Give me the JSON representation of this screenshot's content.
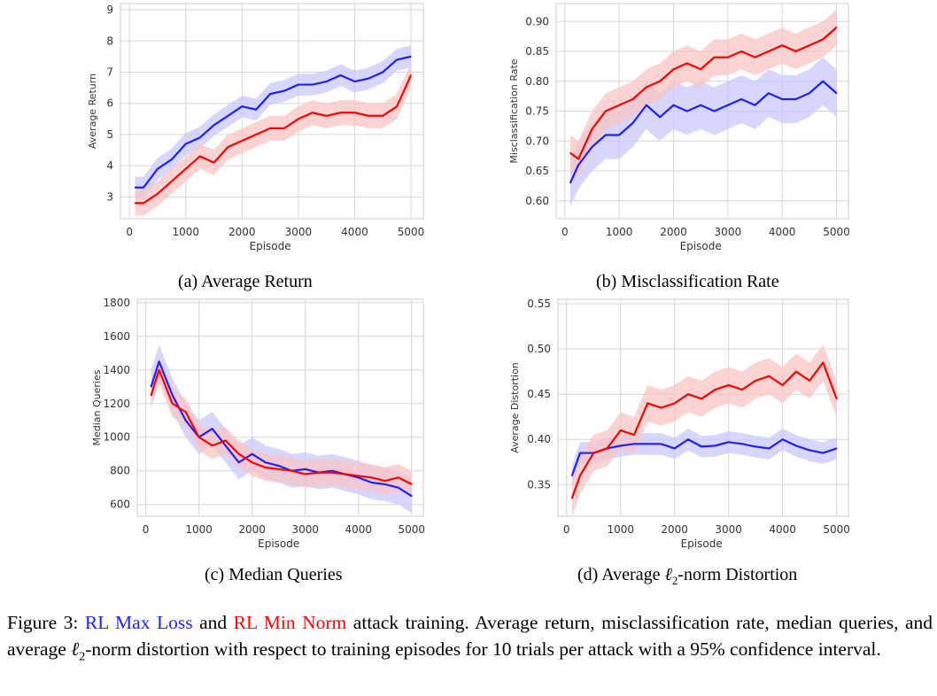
{
  "chart_data": [
    {
      "type": "line",
      "id": "a",
      "ylabel": "Average Return",
      "xlabel": "Episode",
      "xlim": [
        -160,
        5220
      ],
      "ylim": [
        2.3,
        9.2
      ],
      "xticks": [
        0,
        1000,
        2000,
        3000,
        4000,
        5000
      ],
      "yticks": [
        3,
        4,
        5,
        6,
        7,
        8,
        9
      ],
      "ytick_labels": [
        "3",
        "4",
        "5",
        "6",
        "7",
        "8",
        "9"
      ],
      "x": [
        100,
        250,
        500,
        750,
        1000,
        1250,
        1500,
        1750,
        2000,
        2250,
        2500,
        2750,
        3000,
        3250,
        3500,
        3750,
        4000,
        4250,
        4500,
        4750,
        5000
      ],
      "series": [
        {
          "name": "RL Max Loss",
          "color": "#1f1fff",
          "band": "#c8c8ff",
          "ci": 0.35,
          "values": [
            3.3,
            3.3,
            3.9,
            4.2,
            4.7,
            4.9,
            5.3,
            5.6,
            5.9,
            5.8,
            6.3,
            6.4,
            6.6,
            6.6,
            6.7,
            6.9,
            6.7,
            6.8,
            7.0,
            7.4,
            7.5
          ]
        },
        {
          "name": "RL Min Norm",
          "color": "#ff0000",
          "band": "#f9c4c4",
          "ci": 0.4,
          "values": [
            2.8,
            2.8,
            3.1,
            3.5,
            3.9,
            4.3,
            4.1,
            4.6,
            4.8,
            5.0,
            5.2,
            5.2,
            5.5,
            5.7,
            5.6,
            5.7,
            5.7,
            5.6,
            5.6,
            5.9,
            6.9
          ]
        }
      ]
    },
    {
      "type": "line",
      "id": "b",
      "ylabel": "Misclassification Rate",
      "xlabel": "Episode",
      "xlim": [
        -160,
        5220
      ],
      "ylim": [
        0.57,
        0.93
      ],
      "xticks": [
        0,
        1000,
        2000,
        3000,
        4000,
        5000
      ],
      "yticks": [
        0.6,
        0.65,
        0.7,
        0.75,
        0.8,
        0.85,
        0.9
      ],
      "ytick_labels": [
        "0.60",
        "0.65",
        "0.70",
        "0.75",
        "0.80",
        "0.85",
        "0.90"
      ],
      "x": [
        100,
        250,
        500,
        750,
        1000,
        1250,
        1500,
        1750,
        2000,
        2250,
        2500,
        2750,
        3000,
        3250,
        3500,
        3750,
        4000,
        4250,
        4500,
        4750,
        5000
      ],
      "series": [
        {
          "name": "RL Max Loss",
          "color": "#1f1fff",
          "band": "#c8c8ff",
          "ci": 0.04,
          "values": [
            0.63,
            0.66,
            0.69,
            0.71,
            0.71,
            0.73,
            0.76,
            0.74,
            0.76,
            0.75,
            0.76,
            0.75,
            0.76,
            0.77,
            0.76,
            0.78,
            0.77,
            0.77,
            0.78,
            0.8,
            0.78
          ]
        },
        {
          "name": "RL Min Norm",
          "color": "#ff0000",
          "band": "#f9c4c4",
          "ci": 0.03,
          "values": [
            0.68,
            0.67,
            0.72,
            0.75,
            0.76,
            0.77,
            0.79,
            0.8,
            0.82,
            0.83,
            0.82,
            0.84,
            0.84,
            0.85,
            0.84,
            0.85,
            0.86,
            0.85,
            0.86,
            0.87,
            0.89
          ]
        }
      ]
    },
    {
      "type": "line",
      "id": "c",
      "ylabel": "Median Queries",
      "xlabel": "Episode",
      "xlim": [
        -160,
        5220
      ],
      "ylim": [
        530,
        1820
      ],
      "xticks": [
        0,
        1000,
        2000,
        3000,
        4000,
        5000
      ],
      "yticks": [
        600,
        800,
        1000,
        1200,
        1400,
        1600,
        1800
      ],
      "ytick_labels": [
        "600",
        "800",
        "1000",
        "1200",
        "1400",
        "1600",
        "1800"
      ],
      "x": [
        100,
        250,
        500,
        750,
        1000,
        1250,
        1500,
        1750,
        2000,
        2250,
        2500,
        2750,
        3000,
        3250,
        3500,
        3750,
        4000,
        4250,
        4500,
        4750,
        5000
      ],
      "series": [
        {
          "name": "RL Max Loss",
          "color": "#1f1fff",
          "band": "#c8c8ff",
          "ci": 100,
          "values": [
            1300,
            1450,
            1250,
            1100,
            1000,
            1050,
            950,
            850,
            900,
            850,
            830,
            800,
            810,
            790,
            800,
            780,
            760,
            730,
            720,
            700,
            650
          ]
        },
        {
          "name": "RL Min Norm",
          "color": "#ff0000",
          "band": "#f9c4c4",
          "ci": 80,
          "values": [
            1250,
            1400,
            1200,
            1150,
            1000,
            950,
            980,
            900,
            850,
            820,
            810,
            800,
            780,
            790,
            790,
            780,
            770,
            760,
            740,
            760,
            720
          ]
        }
      ]
    },
    {
      "type": "line",
      "id": "d",
      "ylabel": "Average Distortion",
      "xlabel": "Episode",
      "xlim": [
        -160,
        5220
      ],
      "ylim": [
        0.315,
        0.555
      ],
      "xticks": [
        0,
        1000,
        2000,
        3000,
        4000,
        5000
      ],
      "yticks": [
        0.35,
        0.4,
        0.45,
        0.5,
        0.55
      ],
      "ytick_labels": [
        "0.35",
        "0.40",
        "0.45",
        "0.50",
        "0.55"
      ],
      "x": [
        100,
        250,
        500,
        750,
        1000,
        1250,
        1500,
        1750,
        2000,
        2250,
        2500,
        2750,
        3000,
        3250,
        3500,
        3750,
        4000,
        4250,
        4500,
        4750,
        5000
      ],
      "series": [
        {
          "name": "RL Max Loss",
          "color": "#1f1fff",
          "band": "#c8c8ff",
          "ci": 0.012,
          "values": [
            0.36,
            0.385,
            0.385,
            0.39,
            0.393,
            0.395,
            0.395,
            0.395,
            0.39,
            0.4,
            0.392,
            0.393,
            0.397,
            0.395,
            0.392,
            0.39,
            0.4,
            0.393,
            0.388,
            0.385,
            0.39
          ]
        },
        {
          "name": "RL Min Norm",
          "color": "#ff0000",
          "band": "#f9c4c4",
          "ci": 0.02,
          "values": [
            0.335,
            0.36,
            0.385,
            0.39,
            0.41,
            0.405,
            0.44,
            0.435,
            0.44,
            0.45,
            0.445,
            0.455,
            0.46,
            0.455,
            0.465,
            0.47,
            0.46,
            0.475,
            0.465,
            0.485,
            0.445
          ]
        }
      ]
    }
  ],
  "subcaptions": {
    "a": "(a) Average Return",
    "b": "(b) Misclassification Rate",
    "c": "(c) Median Queries",
    "d_prefix": "(d) Average ",
    "d_ell": "ℓ",
    "d_sub": "2",
    "d_suffix": "-norm Distortion"
  },
  "caption": {
    "prefix": "Figure 3: ",
    "series1": "RL Max Loss",
    "and": " and ",
    "series2": "RL Min Norm",
    "text1": " attack training.  Average return, misclassification rate, median queries, and average ",
    "ell": "ℓ",
    "sub": "2",
    "text2": "-norm distortion with respect to training episodes for 10 trials per attack with a 95% confidence interval."
  }
}
